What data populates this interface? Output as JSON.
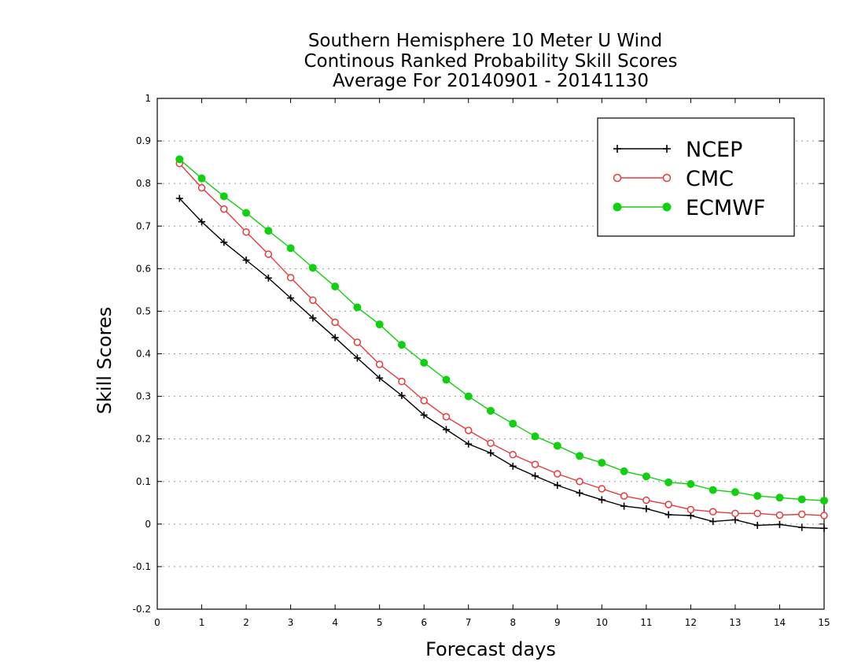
{
  "chart_data": {
    "type": "line",
    "title_lines": [
      "Southern Hemisphere 10 Meter U Wind",
      "Continous Ranked Probability Skill Scores",
      "Average For 20140901 - 20141130"
    ],
    "xlabel": "Forecast days",
    "ylabel": "Skill Scores",
    "xlim": [
      0,
      15
    ],
    "ylim": [
      -0.2,
      1
    ],
    "x_ticks": [
      0,
      1,
      2,
      3,
      4,
      5,
      6,
      7,
      8,
      9,
      10,
      11,
      12,
      13,
      14,
      15
    ],
    "y_ticks": [
      -0.2,
      -0.1,
      0,
      0.1,
      0.2,
      0.3,
      0.4,
      0.5,
      0.6,
      0.7,
      0.8,
      0.9,
      1
    ],
    "y_tick_labels": [
      "-0.2",
      "-0.1",
      "0",
      "0.1",
      "0.2",
      "0.3",
      "0.4",
      "0.5",
      "0.6",
      "0.7",
      "0.8",
      "0.9",
      "1"
    ],
    "grid": "horizontal dotted",
    "legend_position": "top-right",
    "x": [
      0.5,
      1,
      1.5,
      2,
      2.5,
      3,
      3.5,
      4,
      4.5,
      5,
      5.5,
      6,
      6.5,
      7,
      7.5,
      8,
      8.5,
      9,
      9.5,
      10,
      10.5,
      11,
      11.5,
      12,
      12.5,
      13,
      13.5,
      14,
      14.5,
      15
    ],
    "series": [
      {
        "name": "NCEP",
        "color": "#000000",
        "marker": "plus",
        "values": [
          0.765,
          0.71,
          0.662,
          0.62,
          0.578,
          0.531,
          0.484,
          0.438,
          0.39,
          0.343,
          0.302,
          0.256,
          0.222,
          0.188,
          0.167,
          0.136,
          0.113,
          0.091,
          0.073,
          0.057,
          0.042,
          0.036,
          0.022,
          0.02,
          0.006,
          0.01,
          -0.003,
          -0.001,
          -0.008,
          -0.01
        ]
      },
      {
        "name": "CMC",
        "color": "#e8393b",
        "marker": "open-circle",
        "values": [
          0.847,
          0.79,
          0.74,
          0.686,
          0.634,
          0.579,
          0.526,
          0.474,
          0.427,
          0.375,
          0.335,
          0.29,
          0.252,
          0.22,
          0.19,
          0.163,
          0.14,
          0.118,
          0.1,
          0.083,
          0.066,
          0.056,
          0.046,
          0.034,
          0.029,
          0.025,
          0.025,
          0.021,
          0.023,
          0.02
        ]
      },
      {
        "name": "ECMWF",
        "color": "#10d010",
        "marker": "filled-circle",
        "values": [
          0.857,
          0.812,
          0.77,
          0.731,
          0.689,
          0.648,
          0.602,
          0.558,
          0.509,
          0.469,
          0.421,
          0.379,
          0.339,
          0.3,
          0.266,
          0.236,
          0.206,
          0.184,
          0.16,
          0.144,
          0.124,
          0.112,
          0.098,
          0.094,
          0.08,
          0.075,
          0.066,
          0.062,
          0.058,
          0.055
        ]
      }
    ]
  }
}
